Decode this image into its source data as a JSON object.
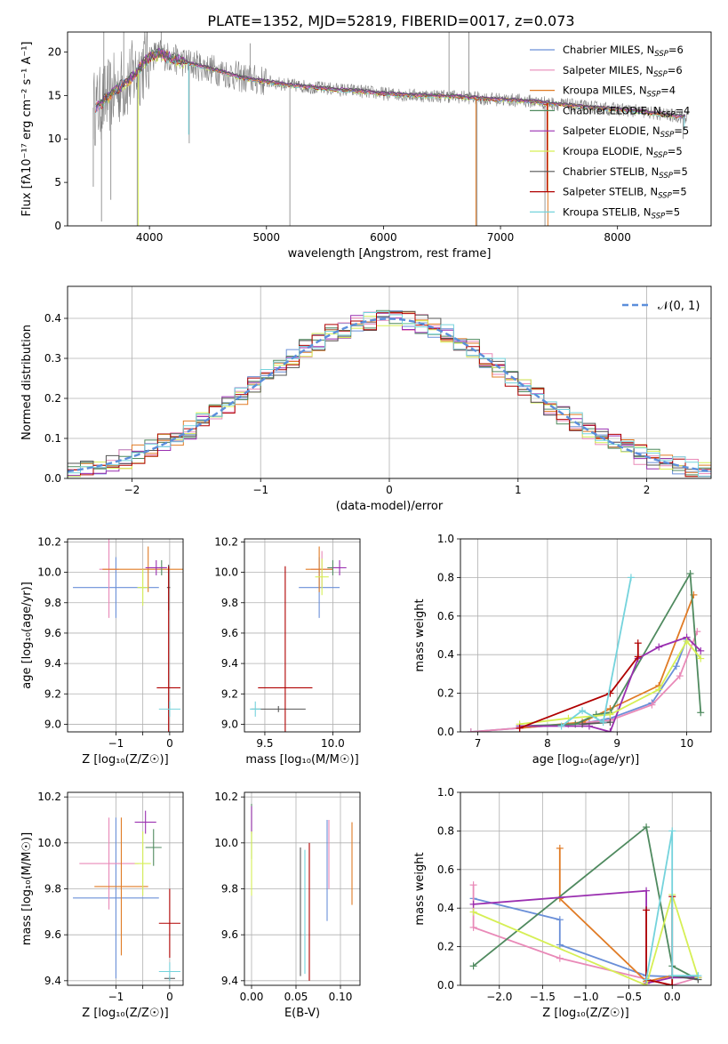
{
  "title": "PLATE=1352, MJD=52819, FIBERID=0017, z=0.073",
  "colors": {
    "chabrier_miles": "#6a8fd8",
    "salpeter_miles": "#e98ab8",
    "kroupa_miles": "#e07b25",
    "chabrier_elodie": "#4f8a5f",
    "salpeter_elodie": "#9a2fb0",
    "kroupa_elodie": "#d6ef55",
    "chabrier_stelib": "#555555",
    "salpeter_stelib": "#b00000",
    "kroupa_stelib": "#74d3dc",
    "data": "#808080",
    "normal_curve": "#5b8edb"
  },
  "chart_data": [
    {
      "id": "spectrum",
      "type": "line",
      "xlabel": "wavelength [Angstrom, rest frame]",
      "ylabel": "Flux [fλ10⁻¹⁷ erg cm⁻² s⁻¹ A⁻¹]",
      "xlim": [
        3300,
        8800
      ],
      "ylim": [
        0,
        22.3
      ],
      "xticks": [
        4000,
        5000,
        6000,
        7000,
        8000
      ],
      "yticks": [
        0,
        5,
        10,
        15,
        20
      ],
      "legend_position": "top-right",
      "legend": [
        {
          "label": "Chabrier MILES, N",
          "sub": "SSP",
          "suffix": "=6",
          "color_key": "chabrier_miles"
        },
        {
          "label": "Salpeter MILES, N",
          "sub": "SSP",
          "suffix": "=6",
          "color_key": "salpeter_miles"
        },
        {
          "label": "Kroupa MILES, N",
          "sub": "SSP",
          "suffix": "=4",
          "color_key": "kroupa_miles"
        },
        {
          "label": "Chabrier ELODIE, N",
          "sub": "SSP",
          "suffix": "=4",
          "color_key": "chabrier_elodie"
        },
        {
          "label": "Salpeter ELODIE, N",
          "sub": "SSP",
          "suffix": "=5",
          "color_key": "salpeter_elodie"
        },
        {
          "label": "Kroupa ELODIE, N",
          "sub": "SSP",
          "suffix": "=5",
          "color_key": "kroupa_elodie"
        },
        {
          "label": "Chabrier STELIB, N",
          "sub": "SSP",
          "suffix": "=5",
          "color_key": "chabrier_stelib"
        },
        {
          "label": "Salpeter STELIB, N",
          "sub": "SSP",
          "suffix": "=5",
          "color_key": "salpeter_stelib"
        },
        {
          "label": "Kroupa STELIB, N",
          "sub": "SSP",
          "suffix": "=5",
          "color_key": "kroupa_stelib"
        }
      ],
      "model_continuum": {
        "x": [
          3550,
          3700,
          3850,
          4000,
          4100,
          4200,
          4400,
          4600,
          4800,
          5000,
          5200,
          5500,
          5800,
          6000,
          6300,
          6600,
          6900,
          7200,
          7500,
          7800,
          8100,
          8400,
          8600
        ],
        "y": [
          13.6,
          15.5,
          17.0,
          19.5,
          19.8,
          19.2,
          18.5,
          17.8,
          17.0,
          16.6,
          16.2,
          15.8,
          15.5,
          15.2,
          15.0,
          14.9,
          14.6,
          14.4,
          14.0,
          13.6,
          13.3,
          12.8,
          12.5
        ]
      },
      "spikes": [
        {
          "x": 3520,
          "y": 4.5
        },
        {
          "x": 3590,
          "y": 0.5
        },
        {
          "x": 3610,
          "y": 22.3
        },
        {
          "x": 3670,
          "y": 3.0
        },
        {
          "x": 3780,
          "y": 22.3
        },
        {
          "x": 3895,
          "y": 0.0
        },
        {
          "x": 4100,
          "y": 22.3
        },
        {
          "x": 4340,
          "y": 9.5
        },
        {
          "x": 4860,
          "y": 21.0
        },
        {
          "x": 5200,
          "y": 0.0
        },
        {
          "x": 6560,
          "y": 22.3
        },
        {
          "x": 6730,
          "y": 22.3
        },
        {
          "x": 6800,
          "y": 0.0
        },
        {
          "x": 7380,
          "y": 0.0
        },
        {
          "x": 8560,
          "y": 10.0
        }
      ]
    },
    {
      "id": "residuals",
      "type": "line",
      "xlabel": "(data-model)/error",
      "ylabel": "Normed distribution",
      "xlim": [
        -2.5,
        2.5
      ],
      "ylim": [
        0,
        0.48
      ],
      "xticks": [
        -2,
        -1,
        0,
        1,
        2
      ],
      "yticks": [
        0.0,
        0.1,
        0.2,
        0.3,
        0.4
      ],
      "grid": true,
      "legend_position": "top-right",
      "legend_label": "𝒩(0, 1)",
      "normal_curve": {
        "mean": 0,
        "sigma": 1
      },
      "histogram_bin_width": 0.1
    },
    {
      "id": "age-vs-z",
      "type": "scatter",
      "xlabel": "Z [log₁₀(Z/Z☉)]",
      "ylabel": "age  [log₁₀(age/yr)]",
      "xlim": [
        -1.9,
        0.25
      ],
      "ylim": [
        8.95,
        10.22
      ],
      "xticks": [
        -1,
        -0.5,
        0
      ],
      "xtick_labels": [
        "−1",
        "",
        "0"
      ],
      "yticks": [
        9.0,
        9.2,
        9.4,
        9.6,
        9.8,
        10.0,
        10.2
      ],
      "grid": true,
      "points": [
        {
          "s": "chabrier_miles",
          "x": -1.0,
          "y": 9.9,
          "xerr": 0.8,
          "yerr": 0.2
        },
        {
          "s": "salpeter_miles",
          "x": -1.13,
          "y": 10.02,
          "xerr": 0.18,
          "yerr": 0.32
        },
        {
          "s": "kroupa_miles",
          "x": -0.4,
          "y": 10.02,
          "xerr": 0.85,
          "yerr": 0.15
        },
        {
          "s": "chabrier_elodie",
          "x": -0.15,
          "y": 10.03,
          "xerr": 0.05,
          "yerr": 0.05
        },
        {
          "s": "salpeter_elodie",
          "x": -0.25,
          "y": 10.03,
          "xerr": 0.2,
          "yerr": 0.05
        },
        {
          "s": "kroupa_elodie",
          "x": -0.5,
          "y": 9.9,
          "xerr": 0.1,
          "yerr": 0.12
        },
        {
          "s": "chabrier_stelib",
          "x": -0.02,
          "y": 9.9,
          "xerr": 0.03,
          "yerr": 0.15
        },
        {
          "s": "salpeter_stelib",
          "x": -0.02,
          "y": 9.24,
          "xerr": 0.22,
          "yerr": 0.8
        },
        {
          "s": "kroupa_stelib",
          "x": 0.0,
          "y": 9.1,
          "xerr": 0.2,
          "yerr": 0.05
        }
      ]
    },
    {
      "id": "age-vs-mass",
      "type": "scatter",
      "xlabel": "mass [log₁₀(M/M☉)]",
      "ylabel": "",
      "xlim": [
        9.35,
        10.2
      ],
      "ylim": [
        8.95,
        10.22
      ],
      "xticks": [
        9.5,
        10.0
      ],
      "yticks": [
        9.0,
        9.2,
        9.4,
        9.6,
        9.8,
        10.0,
        10.2
      ],
      "grid": true,
      "points": [
        {
          "s": "chabrier_miles",
          "x": 9.9,
          "y": 9.9,
          "xerr": 0.15,
          "yerr": 0.2
        },
        {
          "s": "salpeter_miles",
          "x": 9.92,
          "y": 10.02,
          "xerr": 0.08,
          "yerr": 0.12
        },
        {
          "s": "kroupa_miles",
          "x": 9.9,
          "y": 10.02,
          "xerr": 0.1,
          "yerr": 0.15
        },
        {
          "s": "chabrier_elodie",
          "x": 10.0,
          "y": 10.03,
          "xerr": 0.04,
          "yerr": 0.05
        },
        {
          "s": "salpeter_elodie",
          "x": 10.05,
          "y": 10.03,
          "xerr": 0.05,
          "yerr": 0.05
        },
        {
          "s": "kroupa_elodie",
          "x": 9.92,
          "y": 9.97,
          "xerr": 0.05,
          "yerr": 0.12
        },
        {
          "s": "chabrier_stelib",
          "x": 9.6,
          "y": 9.1,
          "xerr": 0.2,
          "yerr": 0.02
        },
        {
          "s": "salpeter_stelib",
          "x": 9.65,
          "y": 9.24,
          "xerr": 0.2,
          "yerr": 0.8
        },
        {
          "s": "kroupa_stelib",
          "x": 9.43,
          "y": 9.1,
          "xerr": 0.04,
          "yerr": 0.05
        }
      ]
    },
    {
      "id": "weight-vs-age",
      "type": "line",
      "xlabel": "age  [log₁₀(age/yr)]",
      "ylabel": "mass weight",
      "xlim": [
        6.75,
        10.35
      ],
      "ylim": [
        0.0,
        1.0
      ],
      "xticks": [
        7,
        8,
        9,
        10
      ],
      "yticks": [
        0.0,
        0.2,
        0.4,
        0.6,
        0.8,
        1.0
      ],
      "grid": true,
      "series": [
        {
          "s": "chabrier_miles",
          "x": [
            6.9,
            7.6,
            8.3,
            8.6,
            8.9,
            9.5,
            9.85,
            10.0
          ],
          "y": [
            0.0,
            0.02,
            0.04,
            0.05,
            0.07,
            0.15,
            0.34,
            0.48
          ]
        },
        {
          "s": "salpeter_miles",
          "x": [
            6.9,
            7.6,
            8.3,
            8.9,
            9.5,
            9.9,
            10.15
          ],
          "y": [
            0.0,
            0.02,
            0.04,
            0.06,
            0.14,
            0.29,
            0.52
          ]
        },
        {
          "s": "kroupa_miles",
          "x": [
            7.6,
            8.5,
            8.9,
            9.6,
            10.1
          ],
          "y": [
            0.02,
            0.05,
            0.12,
            0.24,
            0.71
          ]
        },
        {
          "s": "chabrier_elodie",
          "x": [
            7.6,
            8.4,
            8.7,
            8.9,
            10.05,
            10.2
          ],
          "y": [
            0.03,
            0.04,
            0.09,
            0.1,
            0.82,
            0.1
          ]
        },
        {
          "s": "salpeter_elodie",
          "x": [
            7.6,
            8.6,
            8.9,
            9.3,
            9.6,
            10.0,
            10.2
          ],
          "y": [
            0.03,
            0.03,
            0.0,
            0.38,
            0.44,
            0.49,
            0.42
          ]
        },
        {
          "s": "kroupa_elodie",
          "x": [
            7.6,
            8.3,
            8.9,
            9.6,
            10.0,
            10.2
          ],
          "y": [
            0.04,
            0.07,
            0.09,
            0.22,
            0.47,
            0.38
          ]
        },
        {
          "s": "chabrier_stelib",
          "x": [
            8.5,
            8.9
          ],
          "y": [
            0.04,
            0.05
          ]
        },
        {
          "s": "salpeter_stelib",
          "x": [
            7.6,
            8.9,
            9.3,
            9.3
          ],
          "y": [
            0.02,
            0.2,
            0.39,
            0.46
          ]
        },
        {
          "s": "kroupa_stelib",
          "x": [
            8.2,
            8.5,
            8.8,
            9.2
          ],
          "y": [
            0.03,
            0.11,
            0.05,
            0.8
          ]
        }
      ]
    },
    {
      "id": "mass-vs-z",
      "type": "scatter",
      "xlabel": "Z [log₁₀(Z/Z☉)]",
      "ylabel": "mass [log₁₀(M/M☉)]",
      "xlim": [
        -1.9,
        0.25
      ],
      "ylim": [
        9.38,
        10.22
      ],
      "xticks": [
        -1,
        -0.5,
        0
      ],
      "xtick_labels": [
        "−1",
        "",
        "0"
      ],
      "yticks": [
        9.4,
        9.6,
        9.8,
        10.0,
        10.2
      ],
      "grid": true,
      "points": [
        {
          "s": "chabrier_miles",
          "x": -1.0,
          "y": 9.76,
          "xerr": 0.8,
          "yerr": 0.35
        },
        {
          "s": "salpeter_miles",
          "x": -1.13,
          "y": 9.91,
          "xerr": 0.55,
          "yerr": 0.2
        },
        {
          "s": "kroupa_miles",
          "x": -0.9,
          "y": 9.81,
          "xerr": 0.5,
          "yerr": 0.3
        },
        {
          "s": "chabrier_elodie",
          "x": -0.3,
          "y": 9.98,
          "xerr": 0.15,
          "yerr": 0.08
        },
        {
          "s": "salpeter_elodie",
          "x": -0.45,
          "y": 10.09,
          "xerr": 0.2,
          "yerr": 0.05
        },
        {
          "s": "kroupa_elodie",
          "x": -0.5,
          "y": 9.91,
          "xerr": 0.15,
          "yerr": 0.14
        },
        {
          "s": "chabrier_stelib",
          "x": 0.0,
          "y": 9.41,
          "xerr": 0.1,
          "yerr": 0.01
        },
        {
          "s": "salpeter_stelib",
          "x": 0.0,
          "y": 9.65,
          "xerr": 0.2,
          "yerr": 0.15
        },
        {
          "s": "kroupa_stelib",
          "x": 0.0,
          "y": 9.44,
          "xerr": 0.2,
          "yerr": 0.04
        }
      ]
    },
    {
      "id": "mass-vs-ebv",
      "type": "scatter",
      "xlabel": "E(B-V)",
      "ylabel": "",
      "xlim": [
        -0.008,
        0.122
      ],
      "ylim": [
        9.38,
        10.22
      ],
      "xticks": [
        0.0,
        0.05,
        0.1
      ],
      "xtick_labels": [
        "0.00",
        "0.05",
        "0.10"
      ],
      "yticks": [
        9.4,
        9.6,
        9.8,
        10.0,
        10.2
      ],
      "grid": true,
      "points": [
        {
          "s": "chabrier_miles",
          "x": 0.085,
          "y": 9.88,
          "xerr": 0,
          "yerr": 0.22
        },
        {
          "s": "salpeter_miles",
          "x": 0.087,
          "y": 9.95,
          "xerr": 0,
          "yerr": 0.15
        },
        {
          "s": "kroupa_miles",
          "x": 0.113,
          "y": 9.91,
          "xerr": 0,
          "yerr": 0.18
        },
        {
          "s": "chabrier_elodie",
          "x": 0.0,
          "y": 10.05,
          "xerr": 0,
          "yerr": 0.12
        },
        {
          "s": "salpeter_elodie",
          "x": 0.0,
          "y": 10.1,
          "xerr": 0,
          "yerr": 0.06
        },
        {
          "s": "kroupa_elodie",
          "x": 0.0,
          "y": 9.91,
          "xerr": 0,
          "yerr": 0.14
        },
        {
          "s": "chabrier_stelib",
          "x": 0.055,
          "y": 9.7,
          "xerr": 0,
          "yerr": 0.28
        },
        {
          "s": "salpeter_stelib",
          "x": 0.065,
          "y": 9.7,
          "xerr": 0,
          "yerr": 0.3
        },
        {
          "s": "kroupa_stelib",
          "x": 0.06,
          "y": 9.7,
          "xerr": 0,
          "yerr": 0.27
        }
      ]
    },
    {
      "id": "weight-vs-z",
      "type": "line",
      "xlabel": "Z [log₁₀(Z/Z☉)]",
      "ylabel": "mass weight",
      "xlim": [
        -2.45,
        0.45
      ],
      "ylim": [
        0.0,
        1.0
      ],
      "xticks": [
        -2.0,
        -1.5,
        -1.0,
        -0.5,
        0.0
      ],
      "xtick_labels": [
        "−2.0",
        "−1.5",
        "−1.0",
        "−0.5",
        "0.0"
      ],
      "yticks": [
        0.0,
        0.2,
        0.4,
        0.6,
        0.8,
        1.0
      ],
      "grid": true,
      "series": [
        {
          "s": "chabrier_miles",
          "x": [
            -2.3,
            -1.3,
            -1.3,
            -0.3,
            0.3
          ],
          "y": [
            0.45,
            0.34,
            0.21,
            0.05,
            0.04
          ]
        },
        {
          "s": "salpeter_miles",
          "x": [
            -2.3,
            -2.3,
            -1.3,
            0.0,
            0.3
          ],
          "y": [
            0.52,
            0.3,
            0.14,
            0.0,
            0.04
          ]
        },
        {
          "s": "kroupa_miles",
          "x": [
            -1.3,
            -1.3,
            -0.3,
            0.0
          ],
          "y": [
            0.71,
            0.45,
            0.02,
            0.05
          ]
        },
        {
          "s": "chabrier_elodie",
          "x": [
            -2.3,
            -0.3,
            0.0,
            0.3
          ],
          "y": [
            0.1,
            0.82,
            0.1,
            0.03
          ]
        },
        {
          "s": "salpeter_elodie",
          "x": [
            -2.3,
            -0.3,
            -0.3,
            0.0,
            0.3
          ],
          "y": [
            0.42,
            0.49,
            0.01,
            0.04,
            0.04
          ]
        },
        {
          "s": "kroupa_elodie",
          "x": [
            -2.3,
            -0.3,
            0.0,
            0.3
          ],
          "y": [
            0.38,
            0.0,
            0.47,
            0.04
          ]
        },
        {
          "s": "chabrier_stelib",
          "x": [
            0.0,
            0.3
          ],
          "y": [
            0.05,
            0.03
          ]
        },
        {
          "s": "salpeter_stelib",
          "x": [
            -0.3,
            -0.3,
            0.0,
            0.0
          ],
          "y": [
            0.39,
            0.03,
            0.0,
            0.46
          ]
        },
        {
          "s": "kroupa_stelib",
          "x": [
            -0.3,
            0.0,
            0.0,
            0.3
          ],
          "y": [
            0.03,
            0.8,
            0.05,
            0.05
          ]
        }
      ]
    }
  ]
}
